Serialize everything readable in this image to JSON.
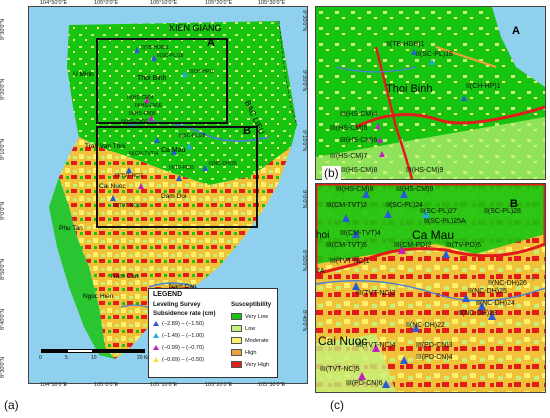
{
  "panel_labels": {
    "a": "(a)",
    "b": "(b)",
    "c": "(c)"
  },
  "lon_ticks": [
    "104°50'0\"E",
    "105°0'0\"E",
    "105°10'0\"E",
    "105°20'0\"E",
    "105°30'0\"E"
  ],
  "lat_ticks": [
    "9°30'0\"N",
    "9°20'0\"N",
    "9°10'0\"N",
    "9°0'0\"N",
    "8°50'0\"N",
    "8°40'0\"N",
    "8°30'0\"N"
  ],
  "regions": {
    "kien_giang": "KIEN GIANG",
    "bac_lieu": "BAC LIEU",
    "u_minh": "U Minh",
    "thoi_binh": "Thoi Binh",
    "tran_van_thoi": "Tran Van Thoi",
    "ca_mau": "Ca Mau",
    "cai_nuoc": "Cai Nuoc",
    "dam_doi": "Dam Doi",
    "phu_tan": "Phu Tan",
    "nam_can_1": "Nam Can",
    "nam_can_2": "Nam Can",
    "ngoc_hien": "Ngoc Hien"
  },
  "box_labels": {
    "a": "A",
    "b": "B"
  },
  "scale_bar": {
    "labels": [
      "0",
      "5",
      "10",
      "20 Km"
    ]
  },
  "legend": {
    "leveling_title": "Leveling Survey",
    "subsidence_title": "Subsidence rate (cm)",
    "susceptibility_title": "Susceptibility",
    "rates": [
      {
        "label": "(−2.89) – (−1.50)",
        "color": "#2a5bd7"
      },
      {
        "label": "(−1.49) – (−1.00)",
        "color": "#22aadd"
      },
      {
        "label": "(−0.99) – (−0.70)",
        "color": "#c020c0"
      },
      {
        "label": "(−0.69) – (−0.50)",
        "color": "#f7e24a"
      }
    ],
    "classes": [
      {
        "label": "Very Low",
        "color": "#17c40f"
      },
      {
        "label": "Low",
        "color": "#c5f07a"
      },
      {
        "label": "Moderate",
        "color": "#fff06a"
      },
      {
        "label": "High",
        "color": "#f0a23a"
      },
      {
        "label": "Very High",
        "color": "#e21b1b"
      }
    ]
  },
  "inset_b": {
    "title": "A",
    "place": "Thoi Binh",
    "stations": [
      "II(TB-HDB)1",
      "II(SC-PL)18",
      "II(CH-HP)1",
      "III(HS-CM)4",
      "III(HS-CM)5",
      "III(HS-CM)6",
      "III(HS-CM)7",
      "III(HS-CM)8",
      "III(HS-CM)9"
    ]
  },
  "inset_c": {
    "title": "B",
    "places": [
      "Ca Mau",
      "Cai Nuoc",
      "hoi"
    ],
    "stations": [
      "III(HS-CM)8",
      "III(HS-CM)9",
      "III(CM-TVT)2",
      "II(SC-PL)24",
      "II(SC-PL)27",
      "II(SC-PL)28",
      "II(SC-PL)25A",
      "III(CM-TVT)4",
      "III(CM-TVT)5",
      "III(CM-PD)2",
      "III(TV-PD)5",
      "III(TVT-NC)1",
      "II(NC-DH)26",
      "II(NC-DH)25",
      "II(NC-DH)24",
      "III(TVT-NC)2",
      "II(NC-DH)23",
      "II(NC-DH)22",
      "III(TVT-NC)4",
      "III(PD-CN)3",
      "III(PD-CN)4",
      "III(TVT-NC)5",
      "III(PD-CN)6",
      "7A"
    ]
  },
  "panel_a_stations": [
    "II(TB-HDB)1",
    "II(SC-PL)18",
    "II(CH-HP)1",
    "III(HS-CM)4",
    "III(HS-CM)5",
    "III(HS-CM)6",
    "III(HS-CM)7",
    "II(SC-PL)28",
    "II(NC-DH)26",
    "III(CM-TVT)4",
    "III(TV-PD)5",
    "III(TVT-NC)1",
    "III(TVT-NC)2"
  ]
}
